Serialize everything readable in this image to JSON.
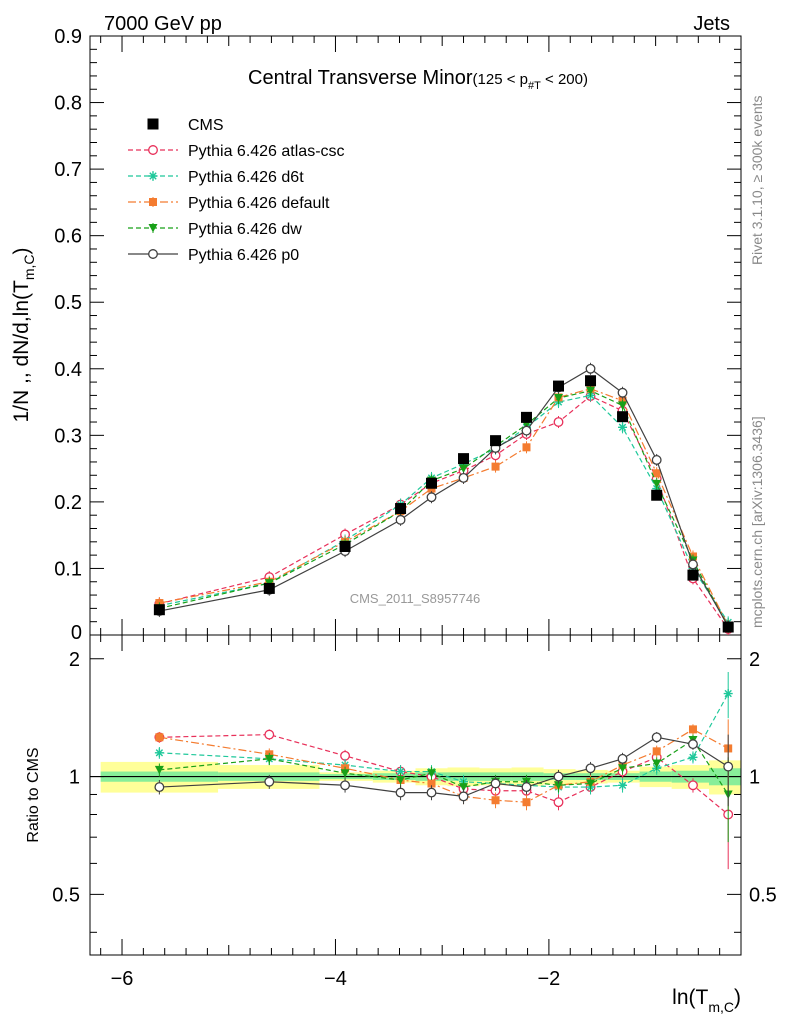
{
  "header": {
    "left": "7000 GeV pp",
    "right": "Jets"
  },
  "side_labels": {
    "rivet": "Rivet 3.1.10, ≥ 300k events",
    "mcplots": "mcplots.cern.ch [arXiv:1306.3436]"
  },
  "watermark": "CMS_2011_S8957746",
  "colors": {
    "cms": "#000000",
    "atlas_csc": "#e8305a",
    "d6t": "#1ec89a",
    "default": "#f47c30",
    "dw": "#18a018",
    "p0": "#404040",
    "band_outer": "#ffff99",
    "band_inner": "#88ee99"
  },
  "chart_data": [
    {
      "type": "line",
      "title": "Central Transverse Minor",
      "title_suffix_prefix": "(125 < p",
      "title_suffix_sub": "#T",
      "title_suffix_post": " < 200)",
      "ylabel": "1/N ,, dN/d,ln(T",
      "ylabel_sub": "m,C",
      "ylabel_close": ")",
      "ylim": [
        0,
        0.9
      ],
      "yticks": [
        "0.1",
        "0.2",
        "0.3",
        "0.4",
        "0.5",
        "0.6",
        "0.7",
        "0.8",
        "0.9"
      ],
      "ytick_zero": "0",
      "x": [
        -5.65,
        -4.62,
        -3.91,
        -3.39,
        -3.1,
        -2.8,
        -2.5,
        -2.21,
        -1.91,
        -1.61,
        -1.31,
        -0.99,
        -0.65,
        -0.32
      ],
      "series": [
        {
          "key": "cms",
          "name": "CMS",
          "values": [
            0.038,
            0.07,
            0.133,
            0.19,
            0.228,
            0.265,
            0.292,
            0.327,
            0.374,
            0.382,
            0.328,
            0.21,
            0.09,
            0.012
          ]
        },
        {
          "key": "atlas_csc",
          "name": "Pythia 6.426 atlas-csc",
          "values": [
            0.047,
            0.087,
            0.151,
            0.196,
            0.228,
            0.247,
            0.27,
            0.302,
            0.32,
            0.359,
            0.337,
            0.235,
            0.085,
            0.009
          ]
        },
        {
          "key": "d6t",
          "name": "Pythia 6.426 d6t",
          "values": [
            0.044,
            0.078,
            0.142,
            0.196,
            0.236,
            0.257,
            0.28,
            0.312,
            0.35,
            0.36,
            0.312,
            0.22,
            0.1,
            0.019
          ]
        },
        {
          "key": "default",
          "name": "Pythia 6.426 default",
          "values": [
            0.048,
            0.08,
            0.14,
            0.186,
            0.22,
            0.236,
            0.253,
            0.282,
            0.357,
            0.37,
            0.352,
            0.243,
            0.118,
            0.014
          ]
        },
        {
          "key": "dw",
          "name": "Pythia 6.426 dw",
          "values": [
            0.04,
            0.078,
            0.136,
            0.186,
            0.232,
            0.25,
            0.284,
            0.316,
            0.356,
            0.367,
            0.345,
            0.227,
            0.112,
            0.012
          ]
        },
        {
          "key": "p0",
          "name": "Pythia 6.426 p0",
          "values": [
            0.036,
            0.068,
            0.126,
            0.173,
            0.207,
            0.236,
            0.281,
            0.307,
            0.372,
            0.4,
            0.364,
            0.263,
            0.106,
            0.013
          ]
        }
      ]
    },
    {
      "type": "line",
      "ylabel": "Ratio to CMS",
      "xlabel": "ln(T",
      "xlabel_sub": "m,C",
      "xlabel_close": ")",
      "ylim": [
        0.35,
        2.3
      ],
      "yticks": [
        "0.5",
        "1",
        "2"
      ],
      "xlim": [
        -6.3,
        -0.2
      ],
      "xticks": [
        "−6",
        "−4",
        "−2"
      ],
      "x": [
        -5.65,
        -4.62,
        -3.91,
        -3.39,
        -3.1,
        -2.8,
        -2.5,
        -2.21,
        -1.91,
        -1.61,
        -1.31,
        -0.99,
        -0.65,
        -0.32
      ],
      "series": [
        {
          "key": "atlas_csc",
          "name": "Pythia 6.426 atlas-csc",
          "values": [
            1.26,
            1.28,
            1.13,
            1.03,
            1.0,
            0.93,
            0.92,
            0.92,
            0.86,
            0.94,
            1.03,
            1.12,
            0.95,
            0.8
          ]
        },
        {
          "key": "d6t",
          "name": "Pythia 6.426 d6t",
          "values": [
            1.15,
            1.11,
            1.07,
            1.03,
            1.03,
            0.97,
            0.96,
            0.95,
            0.94,
            0.94,
            0.95,
            1.05,
            1.12,
            1.63
          ]
        },
        {
          "key": "default",
          "name": "Pythia 6.426 default",
          "values": [
            1.26,
            1.14,
            1.05,
            0.98,
            0.96,
            0.89,
            0.87,
            0.86,
            0.95,
            0.97,
            1.07,
            1.16,
            1.32,
            1.18
          ]
        },
        {
          "key": "dw",
          "name": "Pythia 6.426 dw",
          "values": [
            1.04,
            1.11,
            1.02,
            0.98,
            1.02,
            0.94,
            0.97,
            0.97,
            0.95,
            0.96,
            1.05,
            1.08,
            1.24,
            0.9
          ]
        },
        {
          "key": "p0",
          "name": "Pythia 6.426 p0",
          "values": [
            0.94,
            0.97,
            0.95,
            0.91,
            0.91,
            0.89,
            0.96,
            0.94,
            1.0,
            1.05,
            1.11,
            1.26,
            1.21,
            1.06
          ]
        }
      ]
    }
  ]
}
